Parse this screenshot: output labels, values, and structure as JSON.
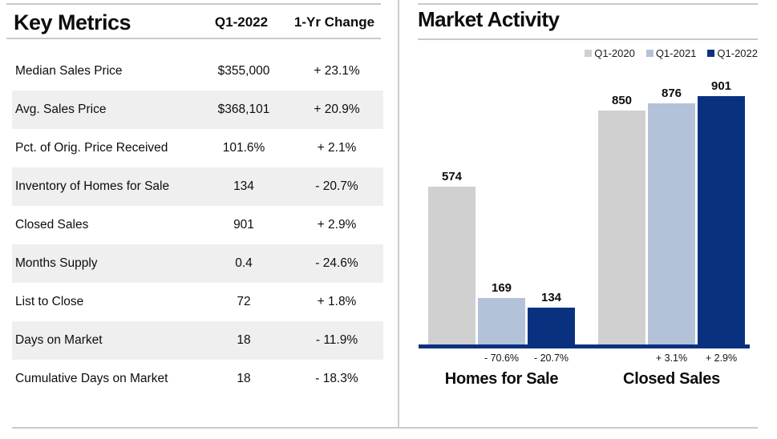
{
  "left_panel": {
    "title": "Key Metrics",
    "columns": {
      "value": "Q1-2022",
      "change": "1-Yr Change"
    },
    "rows": [
      {
        "label": "Median Sales Price",
        "value": "$355,000",
        "change": "+ 23.1%"
      },
      {
        "label": "Avg. Sales Price",
        "value": "$368,101",
        "change": "+ 20.9%"
      },
      {
        "label": "Pct. of Orig. Price Received",
        "value": "101.6%",
        "change": "+ 2.1%"
      },
      {
        "label": "Inventory of Homes for Sale",
        "value": "134",
        "change": "- 20.7%"
      },
      {
        "label": "Closed Sales",
        "value": "901",
        "change": "+ 2.9%"
      },
      {
        "label": "Months Supply",
        "value": "0.4",
        "change": "- 24.6%"
      },
      {
        "label": "List to Close",
        "value": "72",
        "change": "+ 1.8%"
      },
      {
        "label": "Days on Market",
        "value": "18",
        "change": "- 11.9%"
      },
      {
        "label": "Cumulative Days on Market",
        "value": "18",
        "change": "- 18.3%"
      }
    ]
  },
  "right_panel": {
    "title": "Market Activity"
  },
  "chart_data": {
    "type": "bar",
    "title": "Market Activity",
    "categories": [
      "Homes for Sale",
      "Closed Sales"
    ],
    "series": [
      {
        "name": "Q1-2020",
        "color": "#d0d0d0",
        "values": [
          574,
          850
        ],
        "changes": [
          "",
          ""
        ]
      },
      {
        "name": "Q1-2021",
        "color": "#b3c2d9",
        "values": [
          169,
          876
        ],
        "changes": [
          "- 70.6%",
          "+ 3.1%"
        ]
      },
      {
        "name": "Q1-2022",
        "color": "#0a3180",
        "values": [
          134,
          901
        ],
        "changes": [
          "- 20.7%",
          "+ 2.9%"
        ]
      }
    ],
    "ylim": [
      0,
      901
    ],
    "grid": false,
    "y_axis_visible": false,
    "legend_position": "top-right",
    "axis_line_color": "#0a3180",
    "value_labels": "above-bars"
  }
}
